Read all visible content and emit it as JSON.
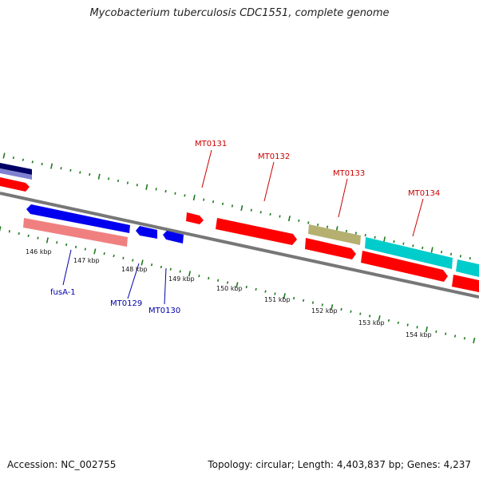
{
  "title": "Mycobacterium tuberculosis CDC1551, complete genome",
  "footer": {
    "accession": "Accession: NC_002755",
    "stats": "Topology: circular; Length: 4,403,837 bp; Genes: 4,237"
  },
  "colors": {
    "backbone": "#777777",
    "tick": "#1f7a1f",
    "label_forward": "#cc0000",
    "label_reverse": "#0000aa",
    "gene_red": "#ff0000",
    "gene_blue": "#0000ee",
    "gene_pink": "#f08080",
    "gene_cyan": "#00cccc",
    "gene_olive": "#b5b070",
    "gene_navy": "#000066",
    "gene_lavender": "#8080d0"
  },
  "scale_ticks": [
    "146 kbp",
    "147 kbp",
    "148 kbp",
    "149 kbp",
    "150 kbp",
    "151 kbp",
    "152 kbp",
    "153 kbp",
    "154 kbp"
  ],
  "gene_labels": {
    "forward": [
      "MT0131",
      "MT0132",
      "MT0133",
      "MT0134"
    ],
    "reverse": [
      "fusA-1",
      "MT0129",
      "MT0130"
    ]
  }
}
